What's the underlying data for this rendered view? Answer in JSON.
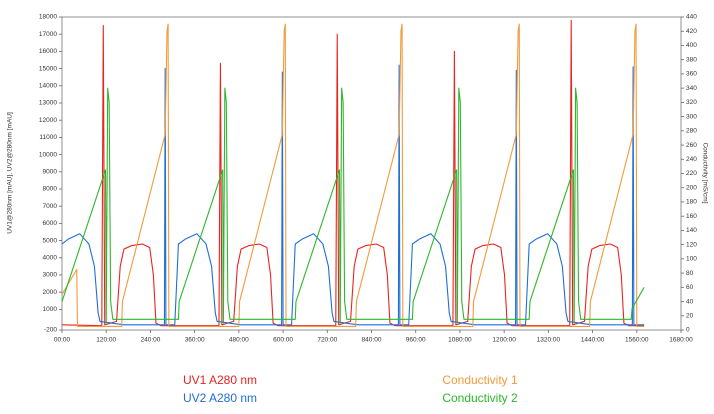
{
  "chart_data": {
    "type": "line",
    "y_label": "UV1@280nm [mAU], UV2@280nm [mAU]",
    "y2_label": "Conductivity [mS/cm]",
    "xlim": [
      0,
      1680
    ],
    "xticks": [
      {
        "value": 0,
        "label": "00:00"
      },
      {
        "value": 120,
        "label": "120:00"
      },
      {
        "value": 240,
        "label": "240:00"
      },
      {
        "value": 360,
        "label": "360:00"
      },
      {
        "value": 480,
        "label": "480:00"
      },
      {
        "value": 600,
        "label": "600:00"
      },
      {
        "value": 720,
        "label": "720:00"
      },
      {
        "value": 840,
        "label": "840:00"
      },
      {
        "value": 960,
        "label": "960:00"
      },
      {
        "value": 1080,
        "label": "1080:00"
      },
      {
        "value": 1200,
        "label": "1200:00"
      },
      {
        "value": 1320,
        "label": "1320:00"
      },
      {
        "value": 1440,
        "label": "1440:00"
      },
      {
        "value": 1560,
        "label": "1560:00"
      },
      {
        "value": 1680,
        "label": "1680:00"
      }
    ],
    "ylim": [
      -200,
      18000
    ],
    "yticks": [
      -200,
      1000,
      2000,
      3000,
      4000,
      5000,
      6000,
      7000,
      8000,
      9000,
      10000,
      11000,
      12000,
      13000,
      14000,
      15000,
      16000,
      17000,
      18000
    ],
    "y2lim": [
      0,
      440
    ],
    "y2ticks": [
      0,
      20,
      40,
      60,
      80,
      100,
      120,
      140,
      160,
      180,
      200,
      220,
      240,
      260,
      280,
      300,
      320,
      340,
      360,
      380,
      400,
      420,
      440
    ],
    "series": [
      {
        "name": "UV1 A280 nm",
        "color": "#e8231f",
        "axis": "y",
        "x": [
          0,
          108,
          112,
          116,
          148,
          158,
          168,
          188,
          218,
          238,
          248,
          255,
          268,
          426,
          430,
          434,
          466,
          476,
          486,
          506,
          536,
          556,
          566,
          573,
          586,
          743,
          747,
          751,
          783,
          793,
          803,
          823,
          853,
          873,
          883,
          890,
          903,
          1061,
          1065,
          1069,
          1101,
          1111,
          1121,
          1141,
          1171,
          1191,
          1201,
          1208,
          1221,
          1378,
          1382,
          1386,
          1418,
          1428,
          1438,
          1458,
          1488,
          1508,
          1518,
          1525,
          1538,
          1580
        ],
        "values": [
          100,
          50,
          17500,
          100,
          300,
          3500,
          4500,
          4700,
          4800,
          4600,
          3000,
          200,
          50,
          50,
          15300,
          100,
          300,
          3500,
          4500,
          4700,
          4800,
          4600,
          3000,
          200,
          50,
          50,
          17000,
          100,
          300,
          3500,
          4500,
          4700,
          4800,
          4600,
          3000,
          200,
          50,
          50,
          16000,
          100,
          300,
          3500,
          4500,
          4700,
          4800,
          4600,
          3000,
          200,
          50,
          50,
          17800,
          100,
          300,
          3500,
          4500,
          4700,
          4800,
          4600,
          3000,
          200,
          50,
          50
        ]
      },
      {
        "name": "UV2 A280 nm",
        "color": "#1f6fd6",
        "axis": "y",
        "x": [
          0,
          18,
          48,
          73,
          88,
          98,
          103,
          168,
          278,
          280,
          282,
          306,
          316,
          336,
          366,
          391,
          406,
          416,
          421,
          486,
          596,
          598,
          600,
          623,
          633,
          653,
          683,
          708,
          723,
          733,
          738,
          803,
          913,
          915,
          917,
          941,
          951,
          971,
          1001,
          1026,
          1041,
          1051,
          1056,
          1121,
          1231,
          1233,
          1235,
          1258,
          1268,
          1288,
          1318,
          1343,
          1358,
          1368,
          1373,
          1438,
          1548,
          1550,
          1552,
          1580
        ],
        "values": [
          4800,
          5100,
          5400,
          4800,
          3500,
          800,
          300,
          100,
          100,
          15000,
          100,
          100,
          4800,
          5100,
          5400,
          4800,
          3500,
          800,
          300,
          100,
          100,
          14800,
          100,
          100,
          4800,
          5100,
          5400,
          4800,
          3500,
          800,
          300,
          100,
          100,
          15200,
          100,
          100,
          4800,
          5100,
          5400,
          4800,
          3500,
          800,
          300,
          100,
          100,
          14900,
          100,
          100,
          4800,
          5100,
          5400,
          4800,
          3500,
          800,
          300,
          100,
          100,
          15100,
          100,
          100
        ]
      },
      {
        "name": "Conductivity 1",
        "color": "#f39a3c",
        "axis": "y2",
        "x": [
          0,
          40,
          42,
          162,
          164,
          280,
          285,
          288,
          290,
          480,
          482,
          598,
          603,
          606,
          608,
          797,
          799,
          915,
          920,
          923,
          925,
          1115,
          1117,
          1233,
          1238,
          1241,
          1243,
          1432,
          1434,
          1550,
          1555,
          1558,
          1560,
          1580
        ],
        "values": [
          50,
          85,
          5,
          5,
          40,
          275,
          420,
          430,
          5,
          5,
          40,
          275,
          420,
          430,
          5,
          5,
          40,
          275,
          420,
          430,
          5,
          5,
          40,
          275,
          420,
          430,
          5,
          5,
          40,
          275,
          420,
          430,
          5,
          5
        ]
      },
      {
        "name": "Conductivity 2",
        "color": "#2cb82c",
        "axis": "y2",
        "x": [
          0,
          118,
          120,
          124,
          128,
          132,
          138,
          316,
          318,
          436,
          438,
          442,
          446,
          450,
          456,
          633,
          635,
          753,
          755,
          759,
          763,
          767,
          773,
          951,
          953,
          1071,
          1073,
          1077,
          1081,
          1085,
          1091,
          1268,
          1270,
          1388,
          1390,
          1394,
          1398,
          1402,
          1408,
          1545,
          1547,
          1580
        ],
        "values": [
          40,
          225,
          10,
          340,
          320,
          40,
          15,
          15,
          40,
          225,
          10,
          340,
          320,
          40,
          15,
          15,
          40,
          225,
          10,
          340,
          320,
          40,
          15,
          15,
          40,
          225,
          10,
          340,
          320,
          40,
          15,
          15,
          40,
          225,
          10,
          340,
          320,
          40,
          15,
          15,
          30,
          60
        ]
      }
    ]
  }
}
